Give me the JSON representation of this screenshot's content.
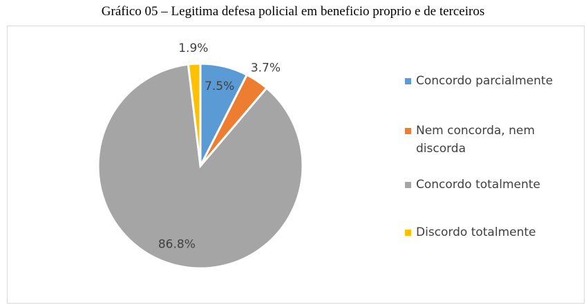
{
  "chart_data": {
    "type": "pie",
    "title": "Gráfico 05 – Legitima defesa policial em beneficio proprio e de terceiros",
    "categories": [
      "Concordo parcialmente",
      "Nem concorda, nem discorda",
      "Concordo totalmente",
      "Discordo totalmente"
    ],
    "values": [
      7.5,
      3.7,
      86.8,
      1.9
    ],
    "value_labels": [
      "7.5%",
      "3.7%",
      "86.8%",
      "1.9%"
    ],
    "colors": [
      "#5b9bd5",
      "#ed7d31",
      "#a5a5a5",
      "#ffc000"
    ],
    "legend": "right"
  }
}
